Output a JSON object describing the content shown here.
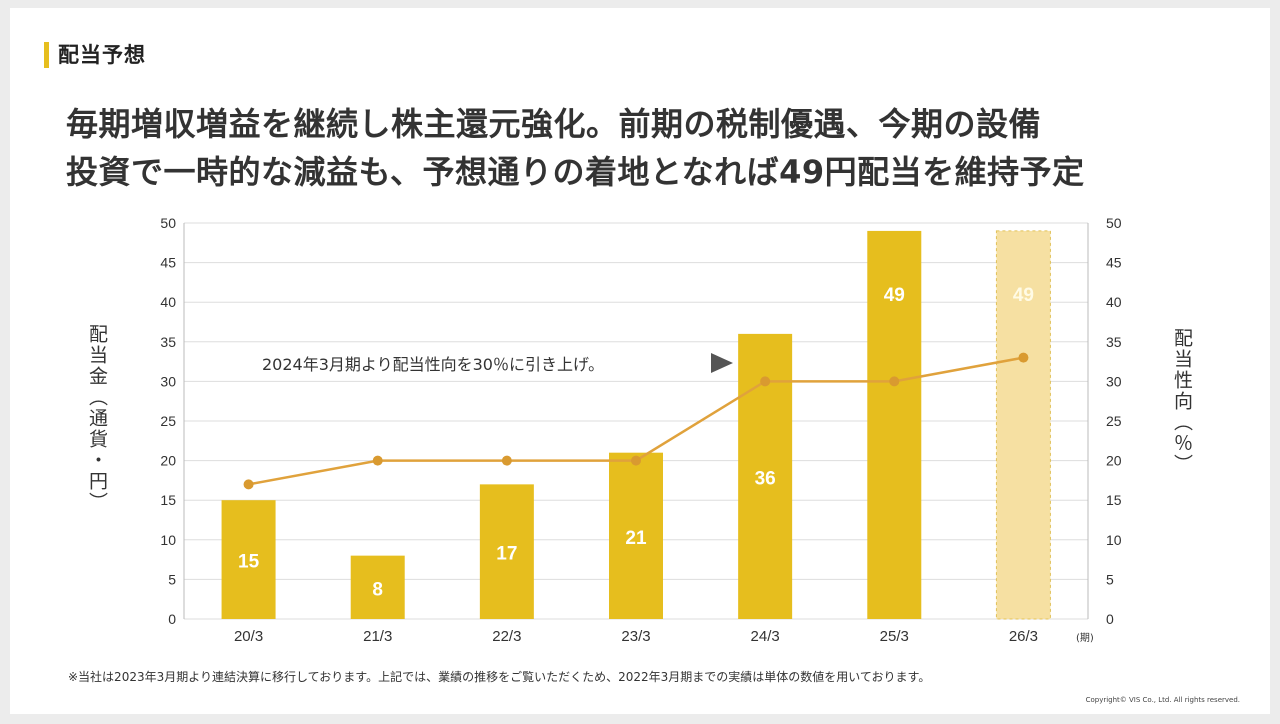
{
  "section_label": "配当予想",
  "headline": {
    "line1": "毎期増収増益を継続し株主還元強化。前期の税制優遇、今期の設備",
    "line2": "投資で一時的な減益も、予想通りの着地となれば49円配当を維持予定"
  },
  "chart_data": {
    "type": "bar",
    "categories": [
      "20/3",
      "21/3",
      "22/3",
      "23/3",
      "24/3",
      "25/3",
      "26/3"
    ],
    "x_suffix": "(期)",
    "series": [
      {
        "values": [
          15,
          8,
          17,
          21,
          36,
          49,
          49
        ],
        "axis": "left",
        "data_labels": [
          "15",
          "8",
          "17",
          "21",
          "36",
          "49",
          "49"
        ]
      },
      {
        "type": "line",
        "values": [
          17,
          20,
          20,
          20,
          30,
          30,
          33
        ],
        "axis": "right"
      }
    ],
    "forecast_index": 6,
    "ylabel_left": "配当金（通貨・円）",
    "ylabel_right": "配当性向（％）",
    "ylim_left": [
      0,
      50
    ],
    "ylim_right": [
      0,
      50
    ],
    "yticks": [
      0,
      5,
      10,
      15,
      20,
      25,
      30,
      35,
      40,
      45,
      50
    ],
    "grid": true,
    "annotation": "2024年3月期より配当性向を30％に引き上げ。",
    "colors": {
      "bar": "#e6be1e",
      "forecast_bar": "#f6e0a2",
      "forecast_border": "#e1c25a",
      "line": "#e0a23c",
      "marker": "#d99a30",
      "grid": "#dddddd",
      "label": "#ffffff",
      "forecast_label": "#fffbe6"
    }
  },
  "footnote": "※当社は2023年3月期より連結決算に移行しております。上記では、業績の推移をご覧いただくため、2022年3月期までの実績は単体の数値を用いております。",
  "copyright": "Copyright© VIS Co., Ltd. All rights reserved."
}
